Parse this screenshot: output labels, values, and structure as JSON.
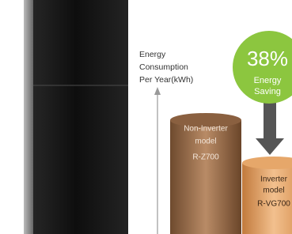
{
  "axis_label": [
    "Energy",
    "Consumption",
    "Per Year(kWh)"
  ],
  "saving": {
    "percent": "38%",
    "label": [
      "Energy",
      "Saving"
    ]
  },
  "bars": [
    {
      "label": [
        "Non-Inverter",
        "model",
        "R-Z700"
      ]
    },
    {
      "label": [
        "Inverter",
        "model",
        "R-VG700"
      ]
    }
  ]
}
